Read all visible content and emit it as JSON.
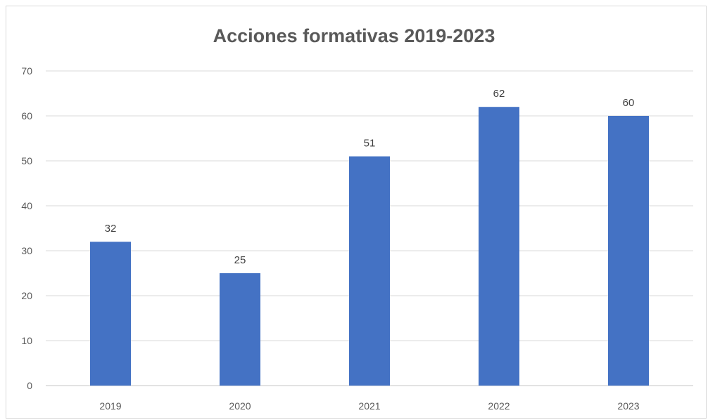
{
  "chart_data": {
    "type": "bar",
    "title": "Acciones formativas 2019-2023",
    "xlabel": "",
    "ylabel": "",
    "categories": [
      "2019",
      "2020",
      "2021",
      "2022",
      "2023"
    ],
    "values": [
      32,
      25,
      51,
      62,
      60
    ],
    "data_labels": [
      "32",
      "25",
      "51",
      "62",
      "60"
    ],
    "ylim": [
      0,
      70
    ],
    "yticks": [
      0,
      10,
      20,
      30,
      40,
      50,
      60,
      70
    ],
    "grid": true,
    "legend": "none",
    "colors": {
      "bar": "#4472C4",
      "grid": "#d9d9d9",
      "axis_text": "#595959"
    }
  }
}
